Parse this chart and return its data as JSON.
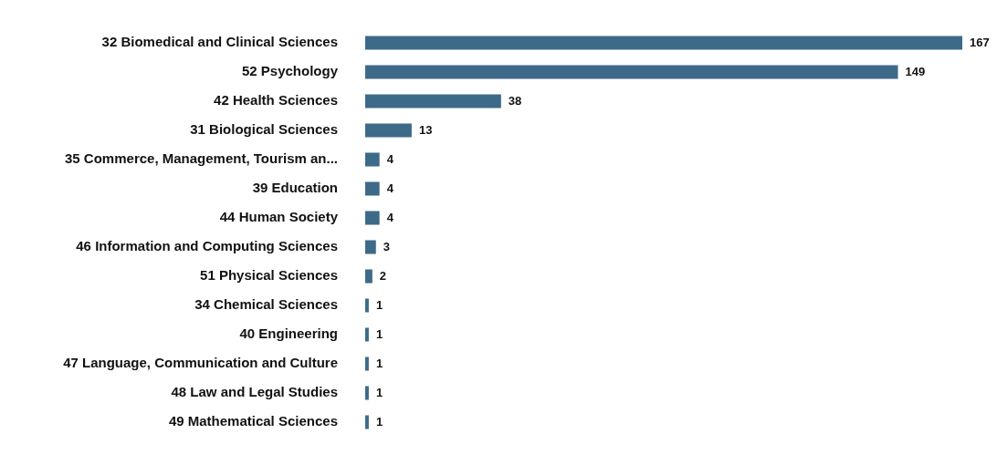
{
  "chart_data": {
    "type": "bar",
    "orientation": "horizontal",
    "categories": [
      "32 Biomedical and Clinical Sciences",
      "52 Psychology",
      "42 Health Sciences",
      "31 Biological Sciences",
      "35 Commerce, Management, Tourism an...",
      "39 Education",
      "44 Human Society",
      "46 Information and Computing Sciences",
      "51 Physical Sciences",
      "34 Chemical Sciences",
      "40 Engineering",
      "47 Language, Communication and Culture",
      "48 Law and Legal Studies",
      "49 Mathematical Sciences"
    ],
    "values": [
      167,
      149,
      38,
      13,
      4,
      4,
      4,
      3,
      2,
      1,
      1,
      1,
      1,
      1
    ],
    "color": "#3d6a89",
    "data_labels": true,
    "legend": false,
    "tick_labels": "y"
  }
}
